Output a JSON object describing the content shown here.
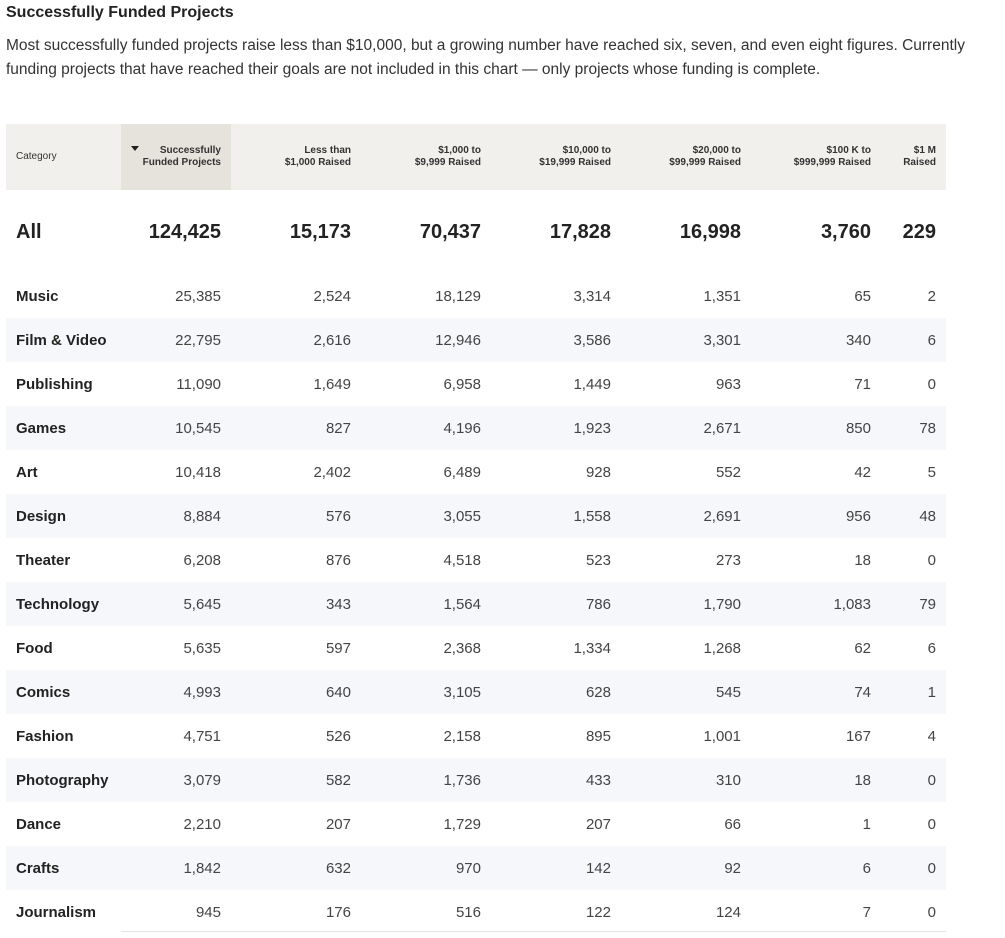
{
  "title": "Successfully Funded Projects",
  "description": "Most successfully funded projects raise less than $10,000, but a growing number have reached six, seven, and even eight figures. Currently funding projects that have reached their goals are not included in this chart — only projects whose funding is complete.",
  "chart_data": {
    "type": "table",
    "sorted_column": "Successfully Funded Projects",
    "sort_direction": "descending",
    "columns": [
      {
        "key": "category",
        "label_lines": [
          "Category"
        ]
      },
      {
        "key": "total",
        "label_lines": [
          "Successfully",
          "Funded Projects"
        ]
      },
      {
        "key": "lt1k",
        "label_lines": [
          "Less than",
          "$1,000 Raised"
        ]
      },
      {
        "key": "1k_10k",
        "label_lines": [
          "$1,000 to",
          "$9,999 Raised"
        ]
      },
      {
        "key": "10k_20k",
        "label_lines": [
          "$10,000 to",
          "$19,999 Raised"
        ]
      },
      {
        "key": "20k_100k",
        "label_lines": [
          "$20,000 to",
          "$99,999 Raised"
        ]
      },
      {
        "key": "100k_1m",
        "label_lines": [
          "$100 K to",
          "$999,999 Raised"
        ]
      },
      {
        "key": "1m",
        "label_lines": [
          "$1 M",
          "Raised"
        ]
      }
    ],
    "summary": {
      "category": "All",
      "values": [
        "124,425",
        "15,173",
        "70,437",
        "17,828",
        "16,998",
        "3,760",
        "229"
      ]
    },
    "rows": [
      {
        "category": "Music",
        "values": [
          "25,385",
          "2,524",
          "18,129",
          "3,314",
          "1,351",
          "65",
          "2"
        ]
      },
      {
        "category": "Film & Video",
        "values": [
          "22,795",
          "2,616",
          "12,946",
          "3,586",
          "3,301",
          "340",
          "6"
        ]
      },
      {
        "category": "Publishing",
        "values": [
          "11,090",
          "1,649",
          "6,958",
          "1,449",
          "963",
          "71",
          "0"
        ]
      },
      {
        "category": "Games",
        "values": [
          "10,545",
          "827",
          "4,196",
          "1,923",
          "2,671",
          "850",
          "78"
        ]
      },
      {
        "category": "Art",
        "values": [
          "10,418",
          "2,402",
          "6,489",
          "928",
          "552",
          "42",
          "5"
        ]
      },
      {
        "category": "Design",
        "values": [
          "8,884",
          "576",
          "3,055",
          "1,558",
          "2,691",
          "956",
          "48"
        ]
      },
      {
        "category": "Theater",
        "values": [
          "6,208",
          "876",
          "4,518",
          "523",
          "273",
          "18",
          "0"
        ]
      },
      {
        "category": "Technology",
        "values": [
          "5,645",
          "343",
          "1,564",
          "786",
          "1,790",
          "1,083",
          "79"
        ]
      },
      {
        "category": "Food",
        "values": [
          "5,635",
          "597",
          "2,368",
          "1,334",
          "1,268",
          "62",
          "6"
        ]
      },
      {
        "category": "Comics",
        "values": [
          "4,993",
          "640",
          "3,105",
          "628",
          "545",
          "74",
          "1"
        ]
      },
      {
        "category": "Fashion",
        "values": [
          "4,751",
          "526",
          "2,158",
          "895",
          "1,001",
          "167",
          "4"
        ]
      },
      {
        "category": "Photography",
        "values": [
          "3,079",
          "582",
          "1,736",
          "433",
          "310",
          "18",
          "0"
        ]
      },
      {
        "category": "Dance",
        "values": [
          "2,210",
          "207",
          "1,729",
          "207",
          "66",
          "1",
          "0"
        ]
      },
      {
        "category": "Crafts",
        "values": [
          "1,842",
          "632",
          "970",
          "142",
          "92",
          "6",
          "0"
        ]
      },
      {
        "category": "Journalism",
        "values": [
          "945",
          "176",
          "516",
          "122",
          "124",
          "7",
          "0"
        ]
      }
    ]
  }
}
